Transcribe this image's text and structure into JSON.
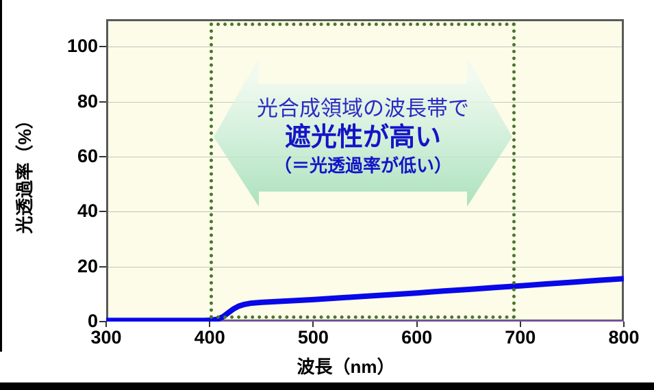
{
  "figure": {
    "frame_color": "#000000",
    "page_background": "#ffffff"
  },
  "chart_data": {
    "type": "line",
    "title": "",
    "xlabel": "波長（nm）",
    "ylabel": "光透過率（%）",
    "xlim": [
      300,
      800
    ],
    "ylim": [
      0,
      110
    ],
    "x_ticks": [
      300,
      400,
      500,
      600,
      700,
      800
    ],
    "y_ticks": [
      0,
      20,
      40,
      60,
      80,
      100
    ],
    "grid": "horizontal",
    "grid_color": "#c3c3c3",
    "plot_background": "#FCFCE8",
    "plot_border_color": "#595959",
    "series": [
      {
        "name": "light-transmittance",
        "color": "#0808E8",
        "stroke_width": 8,
        "points": [
          [
            300,
            0.4
          ],
          [
            320,
            0.4
          ],
          [
            340,
            0.4
          ],
          [
            360,
            0.4
          ],
          [
            380,
            0.4
          ],
          [
            395,
            0.4
          ],
          [
            402,
            0.5
          ],
          [
            408,
            0.9
          ],
          [
            413,
            1.8
          ],
          [
            418,
            3.2
          ],
          [
            423,
            4.6
          ],
          [
            428,
            5.6
          ],
          [
            433,
            6.2
          ],
          [
            440,
            6.7
          ],
          [
            450,
            7.0
          ],
          [
            475,
            7.5
          ],
          [
            500,
            8.0
          ],
          [
            525,
            8.6
          ],
          [
            550,
            9.2
          ],
          [
            575,
            9.8
          ],
          [
            600,
            10.4
          ],
          [
            625,
            11.1
          ],
          [
            650,
            11.7
          ],
          [
            675,
            12.4
          ],
          [
            700,
            13.0
          ],
          [
            725,
            13.7
          ],
          [
            750,
            14.3
          ],
          [
            775,
            15.0
          ],
          [
            800,
            15.6
          ]
        ]
      },
      {
        "name": "baseline-zero",
        "color": "#7B52A3",
        "stroke_width": 3,
        "points": [
          [
            300,
            0.15
          ],
          [
            800,
            0.15
          ]
        ]
      }
    ]
  },
  "annotation": {
    "region_box": {
      "x_range": [
        400,
        695
      ],
      "border_color": "#4A772E"
    },
    "arrow": {
      "line1": "光合成領域の波長帯で",
      "line2": "遮光性が高い",
      "line3": "（＝光透過率が低い）",
      "line1_color": "#2B2BC4",
      "bold_color": "#1414C8",
      "fill_top": "#F0FAF2",
      "fill_mid": "#CDEEDA",
      "fill_bottom": "#9BDCB5"
    }
  }
}
